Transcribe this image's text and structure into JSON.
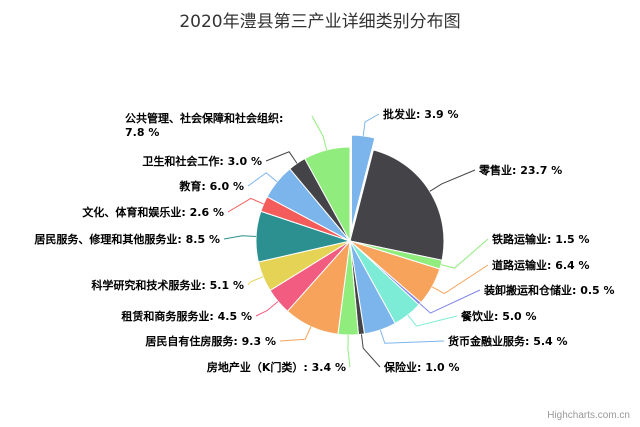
{
  "chart_data": {
    "type": "pie",
    "title": "2020年澧县第三产业详细类别分布图",
    "value_unit": "%",
    "slices": [
      {
        "name": "批发业",
        "value": 3.9,
        "color": "#7cb5ec",
        "sliced": true
      },
      {
        "name": "零售业",
        "value": 23.7,
        "color": "#434348"
      },
      {
        "name": "铁路运输业",
        "value": 1.5,
        "color": "#90ed7d"
      },
      {
        "name": "道路运输业",
        "value": 6.4,
        "color": "#f7a35c"
      },
      {
        "name": "装卸搬运和仓储业",
        "value": 0.5,
        "color": "#8085e9"
      },
      {
        "name": "餐饮业",
        "value": 5.0,
        "color": "#7cecd6"
      },
      {
        "name": "货币金融业服务",
        "value": 5.4,
        "color": "#7cb5ec"
      },
      {
        "name": "保险业",
        "value": 1.0,
        "color": "#434348"
      },
      {
        "name": "房地产业（K门类）",
        "value": 3.4,
        "color": "#90ed7d"
      },
      {
        "name": "居民自有住房服务",
        "value": 9.3,
        "color": "#f7a35c"
      },
      {
        "name": "租赁和商务服务业",
        "value": 4.5,
        "color": "#f15c80"
      },
      {
        "name": "科学研究和技术服务业",
        "value": 5.1,
        "color": "#e4d354"
      },
      {
        "name": "居民服务、修理和其他服务业",
        "value": 8.5,
        "color": "#2b908f"
      },
      {
        "name": "文化、体育和娱乐业",
        "value": 2.6,
        "color": "#f45b5b"
      },
      {
        "name": "教育",
        "value": 6.0,
        "color": "#7cb5ec"
      },
      {
        "name": "卫生和社会工作",
        "value": 3.0,
        "color": "#434348"
      },
      {
        "name": "公共管理、社会保障和社会组织",
        "value": 7.8,
        "color": "#90ed7d"
      }
    ]
  },
  "credits": "Highcharts.com.cn"
}
